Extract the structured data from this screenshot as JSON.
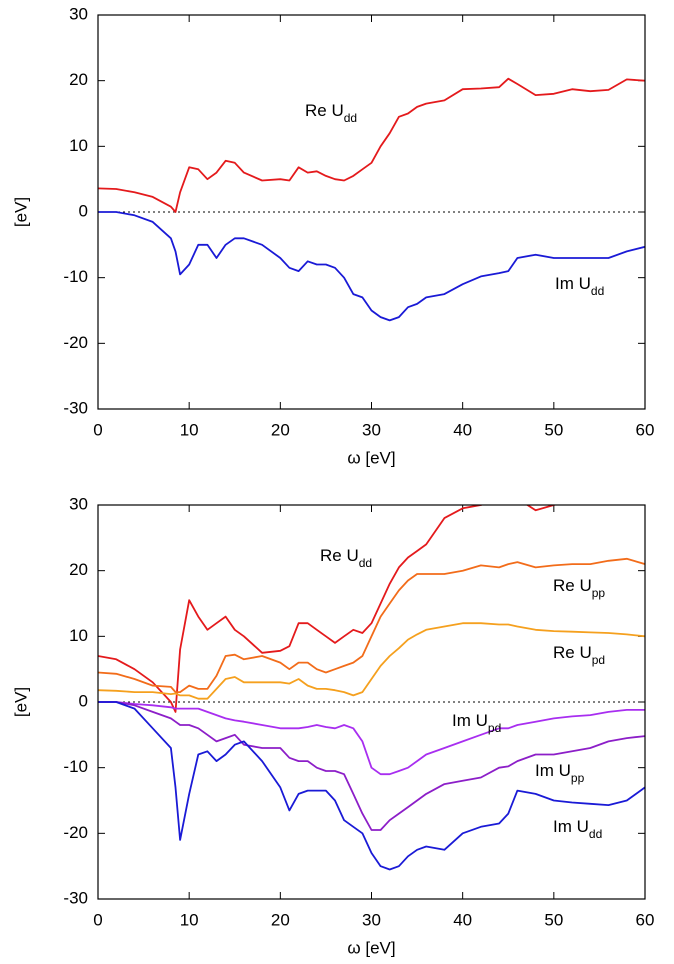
{
  "chart_data": [
    {
      "type": "line",
      "x_label": "ω [eV]",
      "y_label": "[eV]",
      "xlim": [
        0,
        60
      ],
      "ylim": [
        -30,
        30
      ],
      "xticks": [
        0,
        10,
        20,
        30,
        40,
        50,
        60
      ],
      "yticks": [
        -30,
        -20,
        -10,
        0,
        10,
        20,
        30
      ],
      "zero_line": true,
      "x": [
        0,
        2,
        4,
        6,
        8,
        8.5,
        9,
        10,
        11,
        12,
        13,
        14,
        15,
        16,
        18,
        20,
        21,
        22,
        23,
        24,
        25,
        26,
        27,
        28,
        29,
        30,
        31,
        32,
        33,
        34,
        35,
        36,
        38,
        40,
        42,
        44,
        45,
        46,
        48,
        50,
        52,
        54,
        56,
        58,
        60
      ],
      "series": [
        {
          "name": "Re U",
          "name_sub": "dd",
          "color": "#e41a1c",
          "values": [
            3.6,
            3.5,
            3,
            2.3,
            0.8,
            0,
            3,
            6.8,
            6.5,
            5,
            6,
            7.8,
            7.5,
            6,
            4.8,
            5,
            4.8,
            6.8,
            6,
            6.2,
            5.5,
            5,
            4.8,
            5.5,
            6.5,
            7.5,
            10,
            12,
            14.5,
            15,
            16,
            16.5,
            17,
            18.7,
            18.8,
            19,
            20.3,
            19.5,
            17.8,
            18,
            18.7,
            18.4,
            18.6,
            20.2,
            20
          ]
        },
        {
          "name": "Im U",
          "name_sub": "dd",
          "color": "#1a1ad6",
          "values": [
            0,
            0,
            -0.5,
            -1.5,
            -4,
            -6,
            -9.5,
            -8,
            -5,
            -5,
            -7,
            -5,
            -4,
            -4,
            -5,
            -7,
            -8.5,
            -9,
            -7.5,
            -8,
            -8,
            -8.5,
            -10,
            -12.5,
            -13,
            -15,
            -16,
            -16.5,
            -16,
            -14.5,
            -14,
            -13,
            -12.5,
            -11,
            -9.8,
            -9.3,
            -9,
            -7,
            -6.5,
            -7,
            -7,
            -7,
            -7,
            -6,
            -5.3
          ]
        }
      ]
    },
    {
      "type": "line",
      "x_label": "ω [eV]",
      "y_label": "[eV]",
      "xlim": [
        0,
        60
      ],
      "ylim": [
        -30,
        30
      ],
      "xticks": [
        0,
        10,
        20,
        30,
        40,
        50,
        60
      ],
      "yticks": [
        -30,
        -20,
        -10,
        0,
        10,
        20,
        30
      ],
      "zero_line": true,
      "x": [
        0,
        2,
        4,
        6,
        8,
        8.5,
        9,
        10,
        11,
        12,
        13,
        14,
        15,
        16,
        18,
        20,
        21,
        22,
        23,
        24,
        25,
        26,
        27,
        28,
        29,
        30,
        31,
        32,
        33,
        34,
        35,
        36,
        38,
        40,
        42,
        44,
        45,
        46,
        48,
        50,
        52,
        54,
        56,
        58,
        60
      ],
      "series": [
        {
          "name": "Re U",
          "name_sub": "dd",
          "color": "#e41a1c",
          "values": [
            7,
            6.5,
            5,
            3,
            0,
            -1.5,
            8,
            15.5,
            13,
            11,
            12,
            13,
            11,
            10,
            7.5,
            7.8,
            8.5,
            12,
            12,
            11,
            10,
            9,
            10,
            11,
            10.5,
            12,
            15,
            18,
            20.5,
            22,
            23,
            24,
            28,
            29.5,
            30,
            31,
            31,
            31,
            29.2,
            30,
            31,
            31,
            31,
            31,
            31
          ]
        },
        {
          "name": "Re U",
          "name_sub": "pp",
          "color": "#f26c1a",
          "values": [
            4.5,
            4.3,
            3.5,
            2.5,
            2.3,
            1.5,
            1.5,
            2.5,
            2,
            2,
            4,
            7,
            7.2,
            6.5,
            7,
            6,
            5,
            6,
            6,
            5,
            4.5,
            5,
            5.5,
            6,
            7,
            10,
            13,
            15,
            17,
            18.5,
            19.5,
            19.5,
            19.5,
            20,
            20.8,
            20.5,
            21,
            21.3,
            20.5,
            20.8,
            21,
            21,
            21.5,
            21.8,
            21
          ]
        },
        {
          "name": "Re U",
          "name_sub": "pd",
          "color": "#f5a01e",
          "values": [
            1.8,
            1.7,
            1.5,
            1.5,
            1.2,
            1.3,
            1,
            1,
            0.5,
            0.5,
            2,
            3.5,
            3.8,
            3,
            3,
            3,
            2.8,
            3.5,
            2.5,
            2,
            2,
            1.8,
            1.5,
            1,
            1.5,
            3.5,
            5.5,
            7,
            8.2,
            9.5,
            10.3,
            11,
            11.5,
            12,
            12,
            11.8,
            11.8,
            11.5,
            11,
            10.8,
            10.7,
            10.6,
            10.5,
            10.3,
            10
          ]
        },
        {
          "name": "Im U",
          "name_sub": "pd",
          "color": "#a82ef0",
          "values": [
            0,
            0,
            -0.3,
            -0.5,
            -0.8,
            -1,
            -1,
            -1,
            -1,
            -1.5,
            -2,
            -2.5,
            -2.8,
            -3,
            -3.5,
            -4,
            -4,
            -4,
            -3.8,
            -3.5,
            -3.8,
            -4,
            -3.5,
            -4,
            -6,
            -10,
            -11,
            -11,
            -10.5,
            -10,
            -9,
            -8,
            -7,
            -6,
            -5,
            -4,
            -4,
            -3.5,
            -3,
            -2.5,
            -2.2,
            -2,
            -1.5,
            -1.2,
            -1.2
          ]
        },
        {
          "name": "Im U",
          "name_sub": "pp",
          "color": "#8c1ec8",
          "values": [
            0,
            0,
            -0.5,
            -1.5,
            -2.5,
            -3,
            -3.5,
            -3.5,
            -4,
            -5,
            -6,
            -5.5,
            -5,
            -6.5,
            -7,
            -7,
            -8.5,
            -9,
            -9,
            -10,
            -10.5,
            -10.5,
            -11,
            -14,
            -17,
            -19.5,
            -19.5,
            -18,
            -17,
            -16,
            -15,
            -14,
            -12.5,
            -12,
            -11.5,
            -10,
            -9.8,
            -9,
            -8,
            -8,
            -7.5,
            -7,
            -6,
            -5.5,
            -5.2
          ]
        },
        {
          "name": "Im U",
          "name_sub": "dd",
          "color": "#1a1ad6",
          "values": [
            0,
            0,
            -1,
            -4,
            -7,
            -13,
            -21,
            -14,
            -8,
            -7.5,
            -9,
            -8,
            -6.5,
            -6,
            -9,
            -13,
            -16.5,
            -14,
            -13.5,
            -13.5,
            -13.5,
            -15,
            -18,
            -19,
            -20,
            -23,
            -25,
            -25.5,
            -25,
            -23.5,
            -22.5,
            -22,
            -22.5,
            -20,
            -19,
            -18.5,
            -17,
            -13.5,
            -14,
            -15,
            -15.3,
            -15.5,
            -15.7,
            -15,
            -13
          ]
        }
      ]
    }
  ]
}
